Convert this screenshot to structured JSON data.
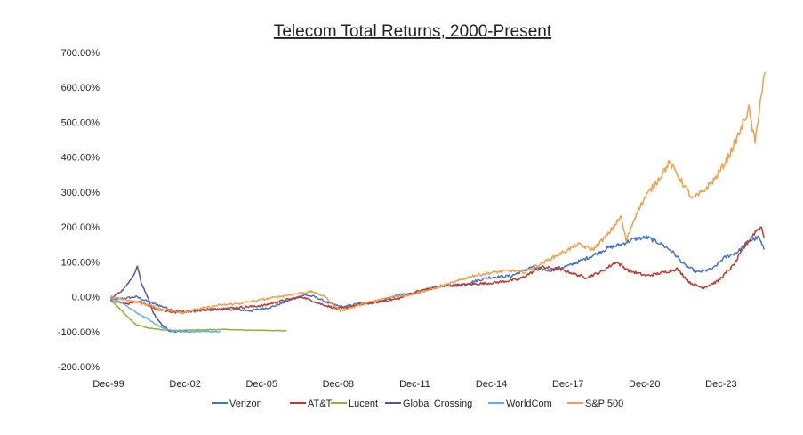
{
  "chart_data": {
    "type": "line",
    "title": "Telecom Total Returns, 2000-Present",
    "xlabel": "",
    "ylabel": "",
    "x_range": [
      1999.92,
      2025.7
    ],
    "ylim": [
      -200,
      700
    ],
    "y_ticks": [
      {
        "value": 700,
        "label": "700.00%"
      },
      {
        "value": 600,
        "label": "600.00%"
      },
      {
        "value": 500,
        "label": "500.00%"
      },
      {
        "value": 400,
        "label": "400.00%"
      },
      {
        "value": 300,
        "label": "300.00%"
      },
      {
        "value": 200,
        "label": "200.00%"
      },
      {
        "value": 100,
        "label": "100.00%"
      },
      {
        "value": 0,
        "label": "0.00%"
      },
      {
        "value": -100,
        "label": "-100.00%"
      },
      {
        "value": -200,
        "label": "-200.00%"
      }
    ],
    "x_ticks": [
      {
        "value": 1999.92,
        "label": "Dec-99"
      },
      {
        "value": 2002.92,
        "label": "Dec-02"
      },
      {
        "value": 2005.92,
        "label": "Dec-05"
      },
      {
        "value": 2008.92,
        "label": "Dec-08"
      },
      {
        "value": 2011.92,
        "label": "Dec-11"
      },
      {
        "value": 2014.92,
        "label": "Dec-14"
      },
      {
        "value": 2017.92,
        "label": "Dec-17"
      },
      {
        "value": 2020.92,
        "label": "Dec-20"
      },
      {
        "value": 2023.92,
        "label": "Dec-23"
      }
    ],
    "grid": false,
    "legend_position": "bottom",
    "series": [
      {
        "name": "Verizon",
        "color": "#4472c4",
        "points": [
          [
            2000.0,
            -10
          ],
          [
            2000.5,
            -5
          ],
          [
            2001.0,
            0
          ],
          [
            2001.5,
            -15
          ],
          [
            2002.3,
            -35
          ],
          [
            2002.8,
            -45
          ],
          [
            2003.5,
            -40
          ],
          [
            2004.5,
            -35
          ],
          [
            2005.5,
            -40
          ],
          [
            2006.3,
            -30
          ],
          [
            2007.0,
            -10
          ],
          [
            2007.6,
            5
          ],
          [
            2008.0,
            0
          ],
          [
            2008.6,
            -20
          ],
          [
            2009.1,
            -30
          ],
          [
            2009.7,
            -20
          ],
          [
            2010.5,
            -15
          ],
          [
            2011.3,
            5
          ],
          [
            2011.9,
            10
          ],
          [
            2012.8,
            30
          ],
          [
            2013.8,
            35
          ],
          [
            2014.8,
            55
          ],
          [
            2015.7,
            60
          ],
          [
            2016.5,
            85
          ],
          [
            2017.2,
            75
          ],
          [
            2018.0,
            90
          ],
          [
            2018.8,
            115
          ],
          [
            2019.5,
            140
          ],
          [
            2020.0,
            150
          ],
          [
            2020.5,
            165
          ],
          [
            2021.0,
            170
          ],
          [
            2021.5,
            155
          ],
          [
            2022.0,
            130
          ],
          [
            2022.5,
            90
          ],
          [
            2023.0,
            70
          ],
          [
            2023.6,
            80
          ],
          [
            2024.0,
            110
          ],
          [
            2024.6,
            130
          ],
          [
            2025.0,
            160
          ],
          [
            2025.4,
            170
          ],
          [
            2025.6,
            135
          ]
        ]
      },
      {
        "name": "AT&T",
        "color": "#c0392b",
        "points": [
          [
            2000.0,
            -10
          ],
          [
            2000.6,
            -20
          ],
          [
            2001.2,
            -15
          ],
          [
            2001.8,
            -35
          ],
          [
            2002.5,
            -45
          ],
          [
            2003.2,
            -40
          ],
          [
            2004.2,
            -35
          ],
          [
            2005.2,
            -30
          ],
          [
            2006.0,
            -25
          ],
          [
            2006.8,
            -10
          ],
          [
            2007.5,
            0
          ],
          [
            2008.2,
            -20
          ],
          [
            2008.9,
            -35
          ],
          [
            2009.6,
            -25
          ],
          [
            2010.5,
            -15
          ],
          [
            2011.3,
            -5
          ],
          [
            2012.0,
            15
          ],
          [
            2013.0,
            30
          ],
          [
            2014.0,
            35
          ],
          [
            2015.0,
            40
          ],
          [
            2016.0,
            50
          ],
          [
            2016.9,
            85
          ],
          [
            2017.5,
            80
          ],
          [
            2018.0,
            70
          ],
          [
            2018.6,
            55
          ],
          [
            2019.2,
            70
          ],
          [
            2019.8,
            100
          ],
          [
            2020.3,
            75
          ],
          [
            2021.0,
            60
          ],
          [
            2021.7,
            70
          ],
          [
            2022.2,
            80
          ],
          [
            2022.7,
            40
          ],
          [
            2023.2,
            25
          ],
          [
            2023.8,
            45
          ],
          [
            2024.4,
            90
          ],
          [
            2024.9,
            150
          ],
          [
            2025.3,
            190
          ],
          [
            2025.5,
            200
          ],
          [
            2025.6,
            170
          ]
        ]
      },
      {
        "name": "Lucent",
        "color": "#8db33a",
        "points": [
          [
            2000.0,
            -10
          ],
          [
            2000.3,
            -30
          ],
          [
            2000.7,
            -60
          ],
          [
            2001.0,
            -80
          ],
          [
            2001.5,
            -90
          ],
          [
            2002.0,
            -95
          ],
          [
            2002.6,
            -97
          ],
          [
            2003.5,
            -95
          ],
          [
            2004.5,
            -94
          ],
          [
            2005.5,
            -96
          ],
          [
            2006.5,
            -97
          ],
          [
            2006.9,
            -98
          ]
        ]
      },
      {
        "name": "Global Crossing",
        "color": "#5b4fa3",
        "points": [
          [
            2000.0,
            -5
          ],
          [
            2000.5,
            20
          ],
          [
            2000.9,
            60
          ],
          [
            2001.05,
            90
          ],
          [
            2001.2,
            40
          ],
          [
            2001.45,
            0
          ],
          [
            2001.7,
            -50
          ],
          [
            2002.0,
            -80
          ],
          [
            2002.3,
            -97
          ],
          [
            2002.6,
            -100
          ],
          [
            2003.0,
            -100
          ]
        ]
      },
      {
        "name": "WorldCom",
        "color": "#5ab4de",
        "points": [
          [
            2000.0,
            -5
          ],
          [
            2000.4,
            -15
          ],
          [
            2000.8,
            -35
          ],
          [
            2001.1,
            -50
          ],
          [
            2001.5,
            -65
          ],
          [
            2001.8,
            -80
          ],
          [
            2002.1,
            -92
          ],
          [
            2002.4,
            -97
          ],
          [
            2003.0,
            -100
          ],
          [
            2003.6,
            -100
          ],
          [
            2004.3,
            -100
          ]
        ]
      },
      {
        "name": "S&P 500",
        "color": "#f0a04b",
        "points": [
          [
            2000.0,
            0
          ],
          [
            2000.7,
            -10
          ],
          [
            2001.3,
            -20
          ],
          [
            2002.0,
            -35
          ],
          [
            2002.8,
            -45
          ],
          [
            2003.5,
            -35
          ],
          [
            2004.2,
            -25
          ],
          [
            2005.0,
            -20
          ],
          [
            2005.8,
            -10
          ],
          [
            2006.6,
            0
          ],
          [
            2007.4,
            10
          ],
          [
            2007.9,
            15
          ],
          [
            2008.4,
            0
          ],
          [
            2009.0,
            -40
          ],
          [
            2009.5,
            -30
          ],
          [
            2010.2,
            -15
          ],
          [
            2011.0,
            0
          ],
          [
            2011.7,
            5
          ],
          [
            2012.5,
            20
          ],
          [
            2013.4,
            40
          ],
          [
            2014.2,
            60
          ],
          [
            2015.0,
            70
          ],
          [
            2015.7,
            75
          ],
          [
            2016.2,
            70
          ],
          [
            2017.0,
            100
          ],
          [
            2017.8,
            130
          ],
          [
            2018.3,
            150
          ],
          [
            2018.9,
            135
          ],
          [
            2019.5,
            180
          ],
          [
            2020.0,
            230
          ],
          [
            2020.2,
            160
          ],
          [
            2020.6,
            240
          ],
          [
            2021.0,
            290
          ],
          [
            2021.5,
            340
          ],
          [
            2021.9,
            385
          ],
          [
            2022.3,
            340
          ],
          [
            2022.8,
            280
          ],
          [
            2023.2,
            300
          ],
          [
            2023.7,
            340
          ],
          [
            2024.2,
            400
          ],
          [
            2024.7,
            480
          ],
          [
            2025.0,
            540
          ],
          [
            2025.25,
            440
          ],
          [
            2025.45,
            560
          ],
          [
            2025.65,
            645
          ]
        ]
      }
    ]
  }
}
